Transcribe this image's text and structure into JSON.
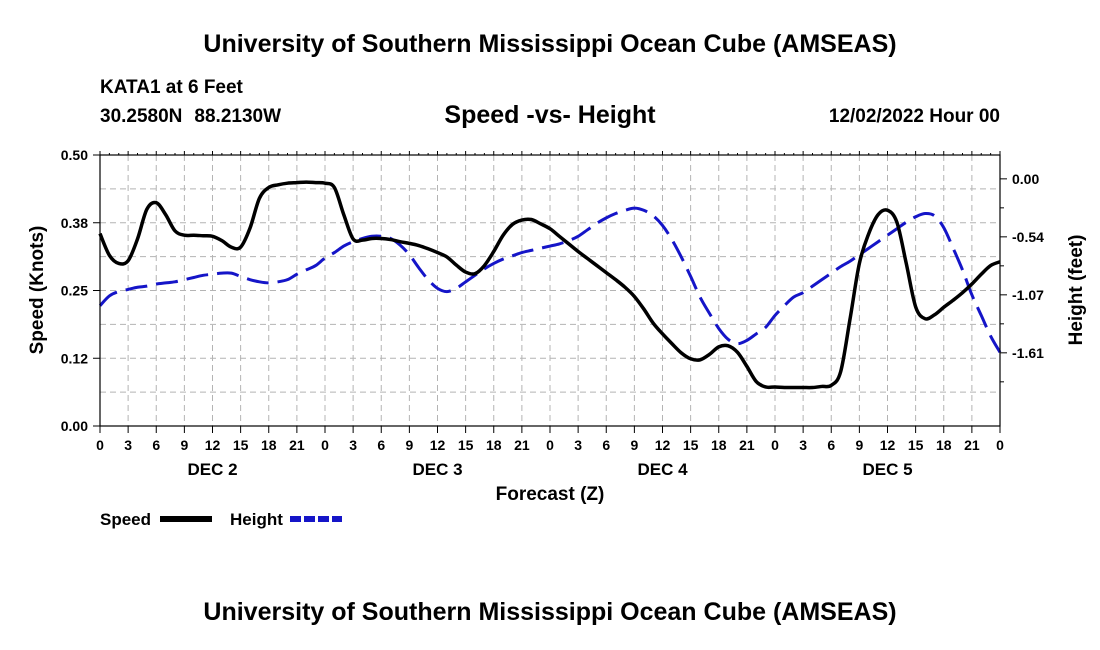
{
  "header": {
    "title": "University of Southern Mississippi Ocean Cube (AMSEAS)",
    "station": "KATA1 at 6 Feet",
    "lat": "30.2580N",
    "lon": "88.2130W",
    "datetime": "12/02/2022 Hour 00"
  },
  "footer": {
    "title": "University of Southern Mississippi Ocean Cube (AMSEAS)"
  },
  "chart_data": {
    "type": "line",
    "title": "Speed -vs- Height",
    "xlabel": "Forecast (Z)",
    "ylabel": "Speed (Knots)",
    "y2label": "Height (feet)",
    "xlim": [
      0,
      96
    ],
    "ylim": [
      0,
      0.5
    ],
    "y2lim": [
      -2.28,
      0.22
    ],
    "yticks": [
      0.0,
      0.125,
      0.25,
      0.375,
      0.5
    ],
    "ytick_labels": [
      "0.00",
      "0.12",
      "0.25",
      "0.38",
      "0.50"
    ],
    "y2ticks": [
      0.0,
      -0.535,
      -1.07,
      -1.605
    ],
    "y2tick_labels": [
      "0.00",
      "-0.54",
      "-1.07",
      "-1.61"
    ],
    "xticks": [
      0,
      3,
      6,
      9,
      12,
      15,
      18,
      21,
      24,
      27,
      30,
      33,
      36,
      39,
      42,
      45,
      48,
      51,
      54,
      57,
      60,
      63,
      66,
      69,
      72,
      75,
      78,
      81,
      84,
      87,
      90,
      93,
      96
    ],
    "xtick_labels": [
      "0",
      "3",
      "6",
      "9",
      "12",
      "15",
      "18",
      "21",
      "0",
      "3",
      "6",
      "9",
      "12",
      "15",
      "18",
      "21",
      "0",
      "3",
      "6",
      "9",
      "12",
      "15",
      "18",
      "21",
      "0",
      "3",
      "6",
      "9",
      "12",
      "15",
      "18",
      "21",
      "0"
    ],
    "day_labels": [
      {
        "label": "DEC 2",
        "x": 12
      },
      {
        "label": "DEC 3",
        "x": 36
      },
      {
        "label": "DEC 4",
        "x": 60
      },
      {
        "label": "DEC 5",
        "x": 84
      }
    ],
    "grid": true,
    "legend": [
      {
        "name": "Speed",
        "color": "#000000",
        "style": "solid"
      },
      {
        "name": "Height",
        "color": "#1515c8",
        "style": "dashed"
      }
    ],
    "series": [
      {
        "name": "Speed",
        "axis": "left",
        "color": "#000000",
        "x": [
          0,
          1,
          2,
          3,
          4,
          5,
          6,
          7,
          8,
          9,
          10,
          11,
          12,
          13,
          14,
          15,
          16,
          17,
          18,
          19,
          20,
          21,
          22,
          23,
          24,
          25,
          26,
          27,
          28,
          29,
          30,
          31,
          32,
          33,
          34,
          35,
          36,
          37,
          38,
          39,
          40,
          41,
          42,
          43,
          44,
          45,
          46,
          47,
          48,
          49,
          50,
          51,
          52,
          53,
          54,
          55,
          56,
          57,
          58,
          59,
          60,
          61,
          62,
          63,
          64,
          65,
          66,
          67,
          68,
          69,
          70,
          71,
          72,
          73,
          74,
          75,
          76,
          77,
          78,
          79,
          80,
          81,
          82,
          83,
          84,
          85,
          86,
          87,
          88,
          89,
          90,
          91,
          92,
          93,
          94,
          95,
          96
        ],
        "values": [
          0.355,
          0.315,
          0.3,
          0.305,
          0.345,
          0.4,
          0.412,
          0.39,
          0.36,
          0.352,
          0.352,
          0.351,
          0.35,
          0.342,
          0.33,
          0.33,
          0.365,
          0.42,
          0.44,
          0.445,
          0.448,
          0.449,
          0.45,
          0.449,
          0.448,
          0.44,
          0.39,
          0.345,
          0.343,
          0.346,
          0.346,
          0.344,
          0.34,
          0.337,
          0.333,
          0.327,
          0.32,
          0.312,
          0.297,
          0.284,
          0.281,
          0.296,
          0.322,
          0.352,
          0.372,
          0.38,
          0.381,
          0.373,
          0.364,
          0.35,
          0.336,
          0.322,
          0.309,
          0.296,
          0.283,
          0.27,
          0.256,
          0.239,
          0.216,
          0.19,
          0.17,
          0.152,
          0.135,
          0.124,
          0.122,
          0.132,
          0.146,
          0.148,
          0.136,
          0.11,
          0.082,
          0.072,
          0.072,
          0.071,
          0.071,
          0.071,
          0.071,
          0.073,
          0.075,
          0.1,
          0.197,
          0.3,
          0.355,
          0.39,
          0.398,
          0.376,
          0.3,
          0.22,
          0.198,
          0.205,
          0.219,
          0.232,
          0.246,
          0.262,
          0.28,
          0.296,
          0.303
        ]
      },
      {
        "name": "Height",
        "axis": "right",
        "color": "#1515c8",
        "x": [
          0,
          1,
          2,
          3,
          4,
          5,
          6,
          7,
          8,
          9,
          10,
          11,
          12,
          13,
          14,
          15,
          16,
          17,
          18,
          19,
          20,
          21,
          22,
          23,
          24,
          25,
          26,
          27,
          28,
          29,
          30,
          31,
          32,
          33,
          34,
          35,
          36,
          37,
          38,
          39,
          40,
          41,
          42,
          43,
          44,
          45,
          46,
          47,
          48,
          49,
          50,
          51,
          52,
          53,
          54,
          55,
          56,
          57,
          58,
          59,
          60,
          61,
          62,
          63,
          64,
          65,
          66,
          67,
          68,
          69,
          70,
          71,
          72,
          73,
          74,
          75,
          76,
          77,
          78,
          79,
          80,
          81,
          82,
          83,
          84,
          85,
          86,
          87,
          88,
          89,
          90,
          91,
          92,
          93,
          94,
          95,
          96
        ],
        "values": [
          -1.17,
          -1.08,
          -1.04,
          -1.02,
          -1.0,
          -0.99,
          -0.97,
          -0.96,
          -0.95,
          -0.93,
          -0.91,
          -0.89,
          -0.88,
          -0.87,
          -0.87,
          -0.9,
          -0.93,
          -0.95,
          -0.96,
          -0.95,
          -0.93,
          -0.88,
          -0.84,
          -0.8,
          -0.73,
          -0.68,
          -0.62,
          -0.58,
          -0.55,
          -0.53,
          -0.53,
          -0.55,
          -0.61,
          -0.7,
          -0.82,
          -0.93,
          -1.01,
          -1.04,
          -1.01,
          -0.95,
          -0.89,
          -0.83,
          -0.78,
          -0.74,
          -0.71,
          -0.68,
          -0.66,
          -0.64,
          -0.62,
          -0.6,
          -0.57,
          -0.53,
          -0.47,
          -0.41,
          -0.36,
          -0.32,
          -0.29,
          -0.27,
          -0.29,
          -0.34,
          -0.43,
          -0.56,
          -0.72,
          -0.9,
          -1.09,
          -1.24,
          -1.38,
          -1.48,
          -1.52,
          -1.49,
          -1.43,
          -1.37,
          -1.26,
          -1.17,
          -1.09,
          -1.05,
          -0.99,
          -0.93,
          -0.87,
          -0.81,
          -0.76,
          -0.7,
          -0.64,
          -0.58,
          -0.52,
          -0.46,
          -0.4,
          -0.35,
          -0.32,
          -0.34,
          -0.45,
          -0.64,
          -0.84,
          -1.07,
          -1.26,
          -1.45,
          -1.6
        ]
      }
    ]
  }
}
